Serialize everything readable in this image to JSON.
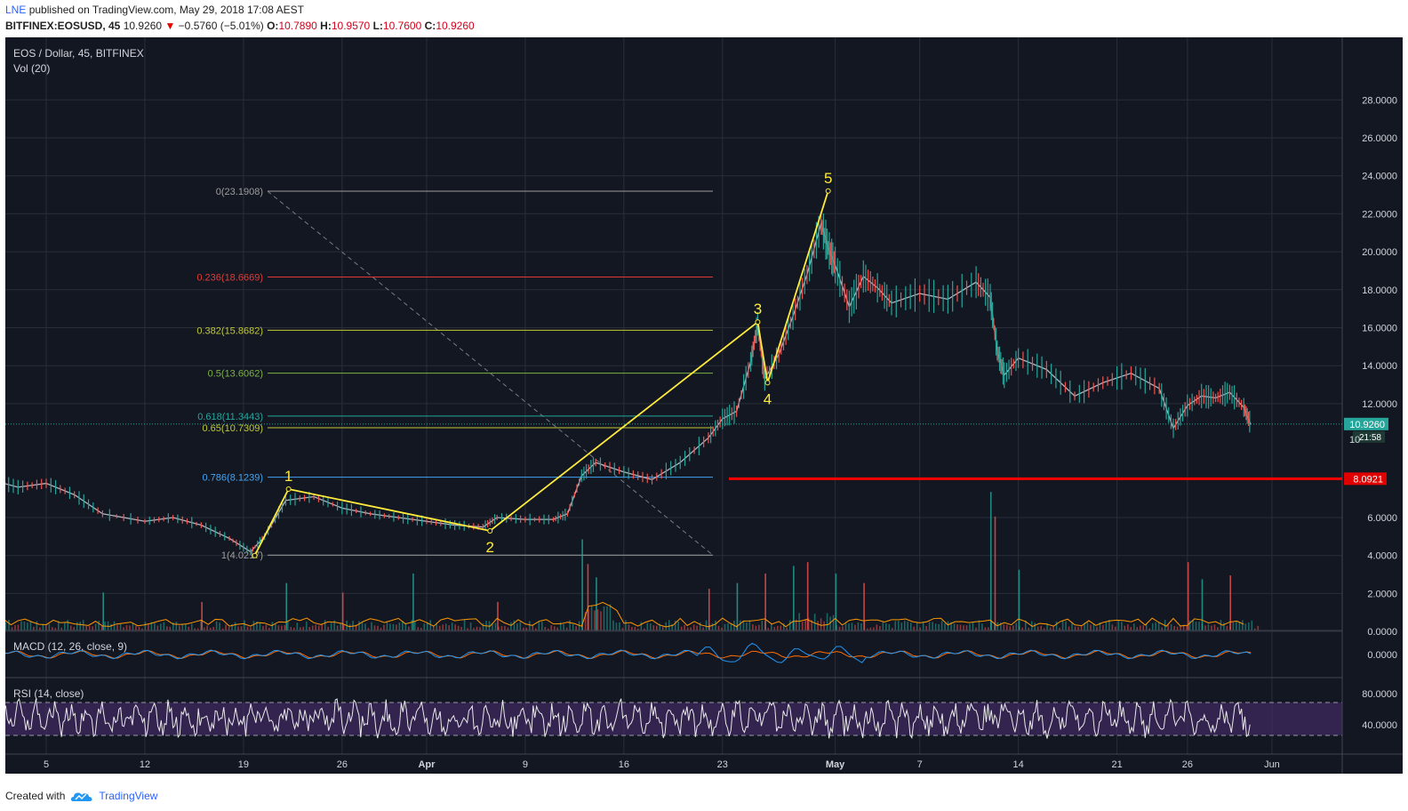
{
  "header": {
    "author": "LNE",
    "published_text": "published on TradingView.com, May 29, 2018 17:08 AEST",
    "symbol": "BITFINEX:EOSUSD, 45",
    "last": "10.9260",
    "change": "−0.5760 (−5.01%)",
    "o_label": "O:",
    "o": "10.7890",
    "h_label": "H:",
    "h": "10.9570",
    "l_label": "L:",
    "l": "10.7600",
    "c_label": "C:",
    "c": "10.9260"
  },
  "footer": {
    "created_with": "Created with",
    "brand": "TradingView"
  },
  "chart_data": {
    "type": "line",
    "title": "EOS / Dollar, 45, BITFINEX",
    "volume_label": "Vol (20)",
    "macd_label": "MACD (12, 26, close, 9)",
    "rsi_label": "RSI (14, close)",
    "ylim": [
      0,
      28.5
    ],
    "price_ticks": [
      "28.0000",
      "26.0000",
      "24.0000",
      "22.0000",
      "20.0000",
      "18.0000",
      "16.0000",
      "14.0000",
      "12.0000",
      "6.0000",
      "4.0000",
      "2.0000",
      "0.0000"
    ],
    "price_tick_values": [
      28,
      26,
      24,
      22,
      20,
      18,
      16,
      14,
      12,
      6,
      4,
      2,
      0
    ],
    "macd_tick": "0.0000",
    "rsi_ticks": [
      "80.0000",
      "40.0000"
    ],
    "x_tick_labels": [
      "5",
      "12",
      "19",
      "26",
      "Apr",
      "9",
      "16",
      "23",
      "May",
      "7",
      "14",
      "21",
      "26",
      "Jun"
    ],
    "x_tick_days": [
      4,
      11,
      18,
      25,
      31,
      38,
      45,
      52,
      60,
      66,
      73,
      80,
      85,
      91
    ],
    "current_price_label": "10.9260",
    "current_price": 10.926,
    "countdown": "21:58",
    "partial_tick": "10",
    "support_label": "8.0921",
    "support_value": 8.0921,
    "fib_levels": [
      {
        "label": "0(23.1908)",
        "value": 23.1908,
        "color": "#9e9e9e"
      },
      {
        "label": "0.236(18.6669)",
        "value": 18.6669,
        "color": "#e53935"
      },
      {
        "label": "0.382(15.8682)",
        "value": 15.8682,
        "color": "#c0ca33"
      },
      {
        "label": "0.5(13.6062)",
        "value": 13.6062,
        "color": "#7cb342"
      },
      {
        "label": "0.618(11.3443)",
        "value": 11.3443,
        "color": "#26a69a"
      },
      {
        "label": "0.65(10.7309)",
        "value": 10.7309,
        "color": "#c0ca33"
      },
      {
        "label": "0.786(8.1239)",
        "value": 8.1239,
        "color": "#42a5f5"
      },
      {
        "label": "1(4.0217)",
        "value": 4.0217,
        "color": "#9e9e9e"
      }
    ],
    "waves": [
      {
        "label": "",
        "day": 18.8,
        "price": 4.0
      },
      {
        "label": "1",
        "day": 21.2,
        "price": 7.5
      },
      {
        "label": "2",
        "day": 35.5,
        "price": 5.3
      },
      {
        "label": "3",
        "day": 54.5,
        "price": 16.3
      },
      {
        "label": "4",
        "day": 55.2,
        "price": 13.1
      },
      {
        "label": "5",
        "day": 59.5,
        "price": 23.2
      }
    ],
    "price_series": {
      "day": [
        0,
        2,
        4,
        6,
        8,
        11,
        13,
        15,
        17,
        18.5,
        19.5,
        21,
        23,
        25,
        27,
        29,
        31,
        33,
        35,
        36,
        38,
        40,
        41,
        42,
        43,
        45,
        47,
        49,
        51,
        52,
        53,
        54,
        54.5,
        55,
        56,
        57,
        58,
        59,
        59.5,
        60,
        61,
        62,
        63,
        64,
        66,
        68,
        70,
        71,
        71.5,
        72,
        73,
        75,
        77,
        79,
        81,
        83,
        84,
        85,
        86,
        87,
        88,
        89,
        89.5
      ],
      "value": [
        8.0,
        7.6,
        7.8,
        7.2,
        6.2,
        5.8,
        6.0,
        5.6,
        4.9,
        4.2,
        5.0,
        6.9,
        7.1,
        6.5,
        6.2,
        6.0,
        5.8,
        5.6,
        5.5,
        6.0,
        5.9,
        5.9,
        6.2,
        8.2,
        8.9,
        8.4,
        8.0,
        8.9,
        10.2,
        11.2,
        11.6,
        14.2,
        16.2,
        13.3,
        14.6,
        16.6,
        18.8,
        21.5,
        20.2,
        19.3,
        17.1,
        18.7,
        18.1,
        17.3,
        17.8,
        17.5,
        18.4,
        17.6,
        14.8,
        13.5,
        14.4,
        13.8,
        12.4,
        13.1,
        13.6,
        12.8,
        10.7,
        11.9,
        12.4,
        12.3,
        12.6,
        11.8,
        10.9
      ]
    },
    "volume_spike_days": [
      8,
      15,
      21,
      25,
      30,
      36,
      42,
      42.4,
      43,
      51,
      53,
      55,
      57,
      58,
      60,
      62,
      71,
      71.3,
      73,
      85,
      86,
      88
    ],
    "volume_spike_heights": [
      2.0,
      1.5,
      2.5,
      2.0,
      3.0,
      1.5,
      4.8,
      3.5,
      2.8,
      2.2,
      2.5,
      3.0,
      3.4,
      3.6,
      3.0,
      2.5,
      7.3,
      6.0,
      3.2,
      3.6,
      2.7,
      2.9
    ]
  }
}
